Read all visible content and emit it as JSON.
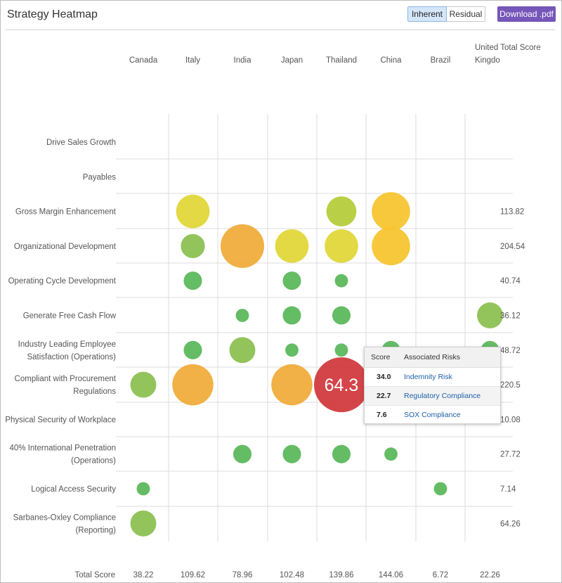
{
  "header": {
    "title": "Strategy Heatmap",
    "toggle_inherent": "Inherent",
    "toggle_residual": "Residual",
    "download_label": "Download .pdf"
  },
  "chart_data": {
    "type": "heatmap",
    "columns": [
      "Canada",
      "Italy",
      "India",
      "Japan",
      "Thailand",
      "China",
      "Brazil",
      "United Kingdom"
    ],
    "total_column_label": "Total Score",
    "rows": [
      {
        "label": "Drive Sales Growth",
        "values": [
          null,
          null,
          null,
          null,
          null,
          null,
          null,
          null
        ],
        "total": ""
      },
      {
        "label": "Payables",
        "values": [
          null,
          null,
          null,
          null,
          null,
          null,
          null,
          null
        ],
        "total": ""
      },
      {
        "label": "Gross Margin Enhancement",
        "values": [
          null,
          22,
          null,
          null,
          17,
          30,
          null,
          null
        ],
        "total": "113.82"
      },
      {
        "label": "Organizational Development",
        "values": [
          null,
          10,
          40,
          22,
          22,
          30,
          null,
          null
        ],
        "total": "204.54"
      },
      {
        "label": "Operating Cycle Development",
        "values": [
          null,
          5,
          null,
          5,
          2,
          null,
          null,
          null
        ],
        "total": "40.74"
      },
      {
        "label": "Generate Free Cash Flow",
        "values": [
          null,
          null,
          2,
          5,
          5,
          null,
          null,
          12
        ],
        "total": "36.12"
      },
      {
        "label": "Industry Leading Employee Satisfaction (Operations)",
        "values": [
          null,
          5,
          12,
          2,
          2,
          5,
          null,
          5
        ],
        "total": "48.72"
      },
      {
        "label": "Compliant with Procurement Regulations",
        "values": [
          12,
          35,
          null,
          35,
          64.3,
          null,
          null,
          null
        ],
        "total": "220.5"
      },
      {
        "label": "Physical Security of Workplace",
        "values": [
          null,
          null,
          null,
          null,
          null,
          null,
          null,
          null
        ],
        "total": "10.08"
      },
      {
        "label": "40% International Penetration (Operations)",
        "values": [
          null,
          null,
          5,
          5,
          5,
          2,
          null,
          null
        ],
        "total": "27.72"
      },
      {
        "label": "Logical Access Security",
        "values": [
          2,
          null,
          null,
          null,
          null,
          null,
          2,
          null
        ],
        "total": "7.14"
      },
      {
        "label": "Sarbanes-Oxley Compliance (Reporting)",
        "values": [
          12,
          null,
          null,
          null,
          null,
          null,
          null,
          null
        ],
        "total": "64.26"
      }
    ],
    "total_row_label": "Total Score",
    "column_totals": [
      "38.22",
      "109.62",
      "78.96",
      "102.48",
      "139.86",
      "144.06",
      "6.72",
      "22.26"
    ],
    "highlight": {
      "row": 7,
      "col": 4,
      "label": "64.3"
    },
    "colors": {
      "green": "#5cb85c",
      "light_green": "#8cc152",
      "yellow_green": "#b5cc3c",
      "yellow": "#e0d73a",
      "gold": "#f7c531",
      "orange": "#f0ad3c",
      "red": "#d13b3f",
      "grid": "#dcdcdc"
    }
  },
  "tooltip": {
    "col_score": "Score",
    "col_risks": "Associated Risks",
    "rows": [
      {
        "score": "34.0",
        "risk": "Indemnity Risk"
      },
      {
        "score": "22.7",
        "risk": "Regulatory Compliance"
      },
      {
        "score": "7.6",
        "risk": "SOX Compliance"
      }
    ]
  }
}
